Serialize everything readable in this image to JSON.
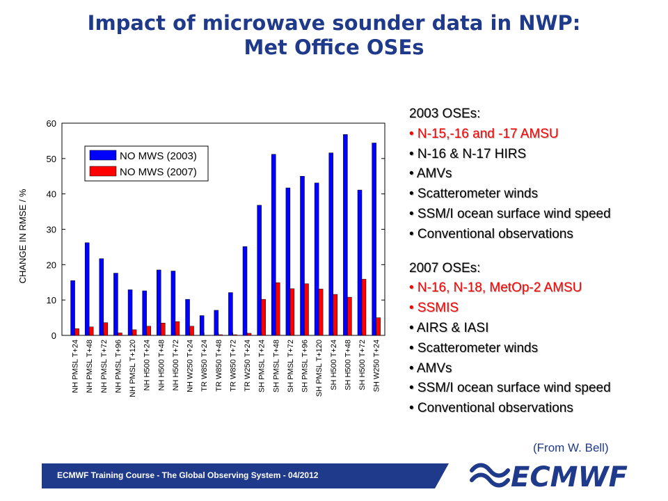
{
  "slide": {
    "title_line1": "Impact of microwave sounder data in NWP:",
    "title_line2": "Met Office OSEs",
    "credit": "(From W. Bell)",
    "footer": "ECMWF Training Course - The Global Observing System - 04/2012",
    "logo_text": "ECMWF",
    "logo_icon": "ecmwf-logo-icon",
    "title_color": "#1f3a8a",
    "footer_color": "#1f3a8a"
  },
  "notes": {
    "section_2003": {
      "heading": "2003 OSEs:",
      "items": [
        {
          "text": "N-15,-16 and -17 AMSU",
          "color": "#ff0000"
        },
        {
          "text": "N-16 & N-17 HIRS",
          "color": "#000000"
        },
        {
          "text": "AMVs",
          "color": "#000000"
        },
        {
          "text": "Scatterometer winds",
          "color": "#000000"
        },
        {
          "text": "SSM/I ocean surface wind speed",
          "color": "#000000"
        },
        {
          "text": "Conventional observations",
          "color": "#000000"
        }
      ]
    },
    "section_2007": {
      "heading": "2007 OSEs:",
      "items": [
        {
          "text": "N-16, N-18, MetOp-2  AMSU",
          "color": "#ff0000"
        },
        {
          "text": "SSMIS",
          "color": "#ff0000"
        },
        {
          "text": "AIRS & IASI",
          "color": "#000000"
        },
        {
          "text": "Scatterometer winds",
          "color": "#000000"
        },
        {
          "text": "AMVs",
          "color": "#000000"
        },
        {
          "text": "SSM/I ocean surface wind speed",
          "color": "#000000"
        },
        {
          "text": "Conventional observations",
          "color": "#000000"
        }
      ]
    }
  },
  "chart_data": {
    "type": "bar",
    "title": "",
    "xlabel": "",
    "ylabel": "CHANGE IN RMSE / %",
    "ylim": [
      0,
      60
    ],
    "yticks": [
      0,
      10,
      20,
      30,
      40,
      50,
      60
    ],
    "grid": false,
    "legend_position": "top-left",
    "categories": [
      "NH PMSL T+24",
      "NH PMSL T+48",
      "NH PMSL T+72",
      "NH PMSL T+96",
      "NH PMSL T+120",
      "NH H500 T+24",
      "NH H500 T+48",
      "NH H500 T+72",
      "NH W250 T+24",
      "TR W850 T+24",
      "TR W850 T+48",
      "TR W850 T+72",
      "TR W250 T+24",
      "SH PMSL T+24",
      "SH PMSL T+48",
      "SH PMSL T+72",
      "SH PMSL T+96",
      "SH PMSL T+120",
      "SH H500 T+24",
      "SH H500 T+48",
      "SH H500 T+72",
      "SH W250 T+24"
    ],
    "series": [
      {
        "name": "NO MWS (2003)",
        "color": "#0000ff",
        "values": [
          15.5,
          26.2,
          21.7,
          17.6,
          12.9,
          12.6,
          18.5,
          18.2,
          10.2,
          5.6,
          7.1,
          12.1,
          25.1,
          36.8,
          51.2,
          41.7,
          45.0,
          43.1,
          51.6,
          56.8,
          41.1,
          54.4
        ]
      },
      {
        "name": "NO MWS (2007)",
        "color": "#ff0000",
        "values": [
          1.9,
          2.4,
          3.6,
          0.7,
          1.6,
          2.6,
          3.5,
          3.9,
          2.6,
          0.0,
          0.2,
          0.2,
          0.6,
          10.2,
          14.9,
          13.2,
          14.6,
          13.1,
          11.6,
          10.8,
          15.9,
          5.0
        ]
      }
    ]
  }
}
